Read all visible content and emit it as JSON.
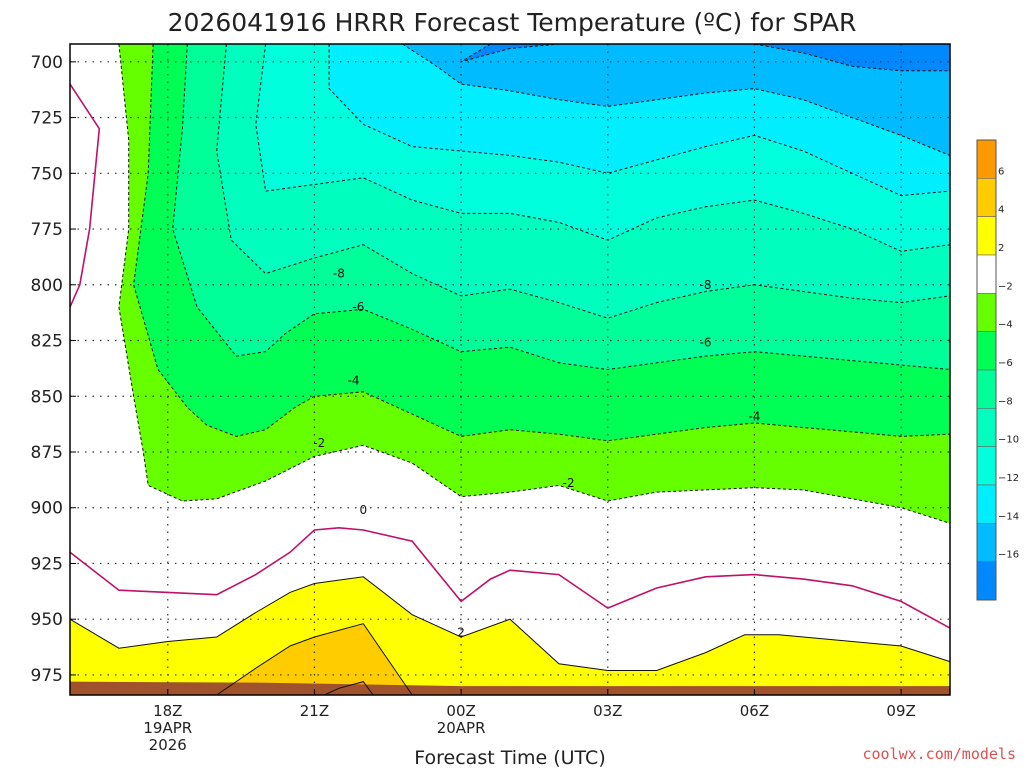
{
  "title": "2026041916 HRRR Forecast Temperature (ºC) for SPAR",
  "credit": "coolwx.com/models",
  "chart_data": {
    "type": "contour",
    "title": "2026041916 HRRR Forecast Temperature (ºC) for SPAR",
    "xlabel": "Forecast Time (UTC)",
    "ylabel": "",
    "x_range_hours": [
      16,
      34
    ],
    "y_range": [
      692,
      984
    ],
    "y_ticks": [
      700,
      725,
      750,
      775,
      800,
      825,
      850,
      875,
      900,
      925,
      950,
      975
    ],
    "x_ticks": [
      {
        "hour": 18,
        "lines": [
          "18Z",
          "19APR",
          "2026"
        ]
      },
      {
        "hour": 21,
        "lines": [
          "21Z"
        ]
      },
      {
        "hour": 24,
        "lines": [
          "00Z",
          "20APR"
        ]
      },
      {
        "hour": 27,
        "lines": [
          "03Z"
        ]
      },
      {
        "hour": 30,
        "lines": [
          "06Z"
        ]
      },
      {
        "hour": 33,
        "lines": [
          "09Z"
        ]
      }
    ],
    "grid": true,
    "colorbar": {
      "position": "right",
      "bins": [
        {
          "color": "#ff9900",
          "low": 6,
          "high": 8
        },
        {
          "color": "#ffcc00",
          "low": 4,
          "high": 6
        },
        {
          "color": "#ffff00",
          "low": 2,
          "high": 4
        },
        {
          "color": "#ffffff",
          "low": -2,
          "high": 2
        },
        {
          "color": "#66ff00",
          "low": -4,
          "high": -2
        },
        {
          "color": "#00ff55",
          "low": -6,
          "high": -4
        },
        {
          "color": "#00ff99",
          "low": -8,
          "high": -6
        },
        {
          "color": "#00ffbf",
          "low": -10,
          "high": -8
        },
        {
          "color": "#00ffdd",
          "low": -12,
          "high": -10
        },
        {
          "color": "#00eeff",
          "low": -14,
          "high": -12
        },
        {
          "color": "#00bbff",
          "low": -16,
          "high": -14
        },
        {
          "color": "#0088ff",
          "low": -18,
          "high": -16
        }
      ],
      "labels": [
        6,
        4,
        2,
        -2,
        -4,
        -6,
        -8,
        -10,
        -12,
        -14,
        -16
      ]
    },
    "series": [
      {
        "level": -2,
        "points": [
          [
            17.0,
            692
          ],
          [
            17.2,
            735
          ],
          [
            17.2,
            775
          ],
          [
            17.0,
            810
          ],
          [
            17.3,
            850
          ],
          [
            17.5,
            875
          ],
          [
            17.6,
            890
          ],
          [
            18.3,
            897
          ],
          [
            19.0,
            896
          ],
          [
            20.0,
            888
          ],
          [
            21.0,
            877
          ],
          [
            22.0,
            872
          ],
          [
            23.0,
            880
          ],
          [
            24.0,
            895
          ],
          [
            25.0,
            893
          ],
          [
            26.0,
            890
          ],
          [
            27.0,
            897
          ],
          [
            28.0,
            893
          ],
          [
            29.0,
            892
          ],
          [
            30.0,
            891
          ],
          [
            31.0,
            892
          ],
          [
            32.0,
            896
          ],
          [
            33.0,
            900
          ],
          [
            34.0,
            907
          ]
        ]
      },
      {
        "level": -4,
        "points": [
          [
            17.7,
            692
          ],
          [
            17.6,
            750
          ],
          [
            17.3,
            800
          ],
          [
            17.8,
            838
          ],
          [
            18.4,
            855
          ],
          [
            18.8,
            863
          ],
          [
            19.4,
            868
          ],
          [
            20.0,
            865
          ],
          [
            20.6,
            855
          ],
          [
            21.0,
            850
          ],
          [
            22.0,
            848
          ],
          [
            23.0,
            858
          ],
          [
            24.0,
            868
          ],
          [
            25.0,
            865
          ],
          [
            26.0,
            867
          ],
          [
            27.0,
            870
          ],
          [
            28.0,
            867
          ],
          [
            29.0,
            864
          ],
          [
            30.0,
            862
          ],
          [
            31.0,
            864
          ],
          [
            32.0,
            866
          ],
          [
            33.0,
            868
          ],
          [
            34.0,
            867
          ]
        ]
      },
      {
        "level": -6,
        "points": [
          [
            18.4,
            692
          ],
          [
            18.3,
            730
          ],
          [
            18.1,
            775
          ],
          [
            18.6,
            810
          ],
          [
            19.4,
            832
          ],
          [
            20.0,
            830
          ],
          [
            20.4,
            822
          ],
          [
            21.0,
            813
          ],
          [
            22.0,
            811
          ],
          [
            23.0,
            820
          ],
          [
            24.0,
            830
          ],
          [
            25.0,
            828
          ],
          [
            26.0,
            835
          ],
          [
            27.0,
            838
          ],
          [
            28.0,
            835
          ],
          [
            29.0,
            832
          ],
          [
            30.0,
            830
          ],
          [
            31.0,
            832
          ],
          [
            32.0,
            834
          ],
          [
            33.0,
            836
          ],
          [
            34.0,
            838
          ]
        ]
      },
      {
        "level": -8,
        "points": [
          [
            19.2,
            692
          ],
          [
            19.0,
            740
          ],
          [
            19.3,
            780
          ],
          [
            20.0,
            795
          ],
          [
            21.0,
            788
          ],
          [
            22.0,
            782
          ],
          [
            23.0,
            795
          ],
          [
            24.0,
            805
          ],
          [
            25.0,
            802
          ],
          [
            26.0,
            808
          ],
          [
            27.0,
            815
          ],
          [
            28.0,
            808
          ],
          [
            29.0,
            803
          ],
          [
            30.0,
            800
          ],
          [
            31.0,
            803
          ],
          [
            32.0,
            806
          ],
          [
            33.0,
            808
          ],
          [
            34.0,
            805
          ]
        ]
      },
      {
        "level": -10,
        "points": [
          [
            20.0,
            692
          ],
          [
            19.8,
            728
          ],
          [
            20.0,
            758
          ],
          [
            21.0,
            755
          ],
          [
            22.0,
            752
          ],
          [
            23.0,
            762
          ],
          [
            24.0,
            768
          ],
          [
            25.0,
            768
          ],
          [
            26.0,
            772
          ],
          [
            27.0,
            780
          ],
          [
            28.0,
            770
          ],
          [
            29.0,
            765
          ],
          [
            30.0,
            762
          ],
          [
            31.0,
            768
          ],
          [
            32.0,
            775
          ],
          [
            33.0,
            785
          ],
          [
            34.0,
            782
          ]
        ]
      },
      {
        "level": -12,
        "points": [
          [
            21.3,
            692
          ],
          [
            21.3,
            712
          ],
          [
            22.0,
            728
          ],
          [
            23.0,
            738
          ],
          [
            24.0,
            740
          ],
          [
            25.0,
            742
          ],
          [
            26.0,
            745
          ],
          [
            27.0,
            750
          ],
          [
            28.0,
            744
          ],
          [
            29.0,
            738
          ],
          [
            30.0,
            733
          ],
          [
            31.0,
            740
          ],
          [
            32.0,
            750
          ],
          [
            33.0,
            760
          ],
          [
            34.0,
            758
          ]
        ]
      },
      {
        "level": -14,
        "points": [
          [
            22.8,
            692
          ],
          [
            23.5,
            702
          ],
          [
            24.0,
            710
          ],
          [
            25.0,
            713
          ],
          [
            26.0,
            717
          ],
          [
            27.0,
            720
          ],
          [
            28.0,
            717
          ],
          [
            29.0,
            714
          ],
          [
            30.0,
            712
          ],
          [
            31.0,
            717
          ],
          [
            32.0,
            725
          ],
          [
            33.0,
            733
          ],
          [
            34.0,
            742
          ]
        ]
      },
      {
        "level": -16,
        "points": [
          [
            24.6,
            692
          ],
          [
            24.0,
            700
          ],
          [
            25.0,
            694
          ],
          [
            26.0,
            692
          ],
          [
            28.0,
            692
          ],
          [
            29.0,
            692
          ],
          [
            30.0,
            692
          ],
          [
            31.0,
            696
          ],
          [
            32.0,
            702
          ],
          [
            33.0,
            704
          ],
          [
            34.0,
            704
          ]
        ]
      },
      {
        "level": 0,
        "points": [
          [
            16.0,
            920
          ],
          [
            17.0,
            937
          ],
          [
            18.0,
            938
          ],
          [
            19.0,
            939
          ],
          [
            19.8,
            930
          ],
          [
            20.5,
            920
          ],
          [
            21.0,
            910
          ],
          [
            21.5,
            909
          ],
          [
            22.0,
            910
          ],
          [
            23.0,
            915
          ],
          [
            24.0,
            942
          ],
          [
            24.6,
            932
          ],
          [
            25.0,
            928
          ],
          [
            26.0,
            930
          ],
          [
            27.0,
            945
          ],
          [
            28.0,
            936
          ],
          [
            29.0,
            931
          ],
          [
            30.0,
            930
          ],
          [
            31.0,
            932
          ],
          [
            32.0,
            935
          ],
          [
            33.0,
            942
          ],
          [
            34.0,
            954
          ]
        ]
      },
      {
        "level": 2,
        "points": [
          [
            16.0,
            950
          ],
          [
            17.0,
            963
          ],
          [
            18.0,
            960
          ],
          [
            19.0,
            958
          ],
          [
            19.8,
            947
          ],
          [
            20.5,
            938
          ],
          [
            21.0,
            934
          ],
          [
            22.0,
            931
          ],
          [
            23.0,
            948
          ],
          [
            24.0,
            958
          ],
          [
            25.0,
            950
          ],
          [
            26.0,
            970
          ],
          [
            27.0,
            973
          ],
          [
            28.0,
            973
          ],
          [
            29.0,
            965
          ],
          [
            29.8,
            957
          ],
          [
            30.5,
            957
          ],
          [
            31.0,
            958
          ],
          [
            32.0,
            960
          ],
          [
            33.0,
            962
          ],
          [
            34.0,
            969
          ]
        ]
      },
      {
        "level": 4,
        "points": [
          [
            19.0,
            984
          ],
          [
            19.8,
            972
          ],
          [
            20.5,
            962
          ],
          [
            21.0,
            958
          ],
          [
            22.0,
            952
          ],
          [
            23.0,
            984
          ]
        ]
      },
      {
        "level": 6,
        "points": [
          [
            21.2,
            984
          ],
          [
            21.5,
            981
          ],
          [
            22.0,
            978
          ],
          [
            22.2,
            984
          ]
        ]
      },
      {
        "level": 8,
        "points": []
      }
    ],
    "contour_labels": [
      {
        "text": "-6",
        "x": 21.9,
        "y": 810
      },
      {
        "text": "-4",
        "x": 21.8,
        "y": 843
      },
      {
        "text": "-2",
        "x": 21.1,
        "y": 871
      },
      {
        "text": "0",
        "x": 22.0,
        "y": 901
      },
      {
        "text": "2",
        "x": 24.0,
        "y": 956
      },
      {
        "text": "-2",
        "x": 26.2,
        "y": 889
      },
      {
        "text": "-4",
        "x": 30.0,
        "y": 859
      },
      {
        "text": "-6",
        "x": 29.0,
        "y": 826
      },
      {
        "text": "-8",
        "x": 29.0,
        "y": 800
      },
      {
        "text": "-8",
        "x": 21.5,
        "y": 795
      }
    ],
    "left_isotherm_0": [
      [
        16.0,
        710
      ],
      [
        16.6,
        730
      ],
      [
        16.4,
        775
      ],
      [
        16.2,
        800
      ],
      [
        16.0,
        810
      ]
    ],
    "terrain": {
      "color": "#a0522d",
      "top": 978
    }
  }
}
